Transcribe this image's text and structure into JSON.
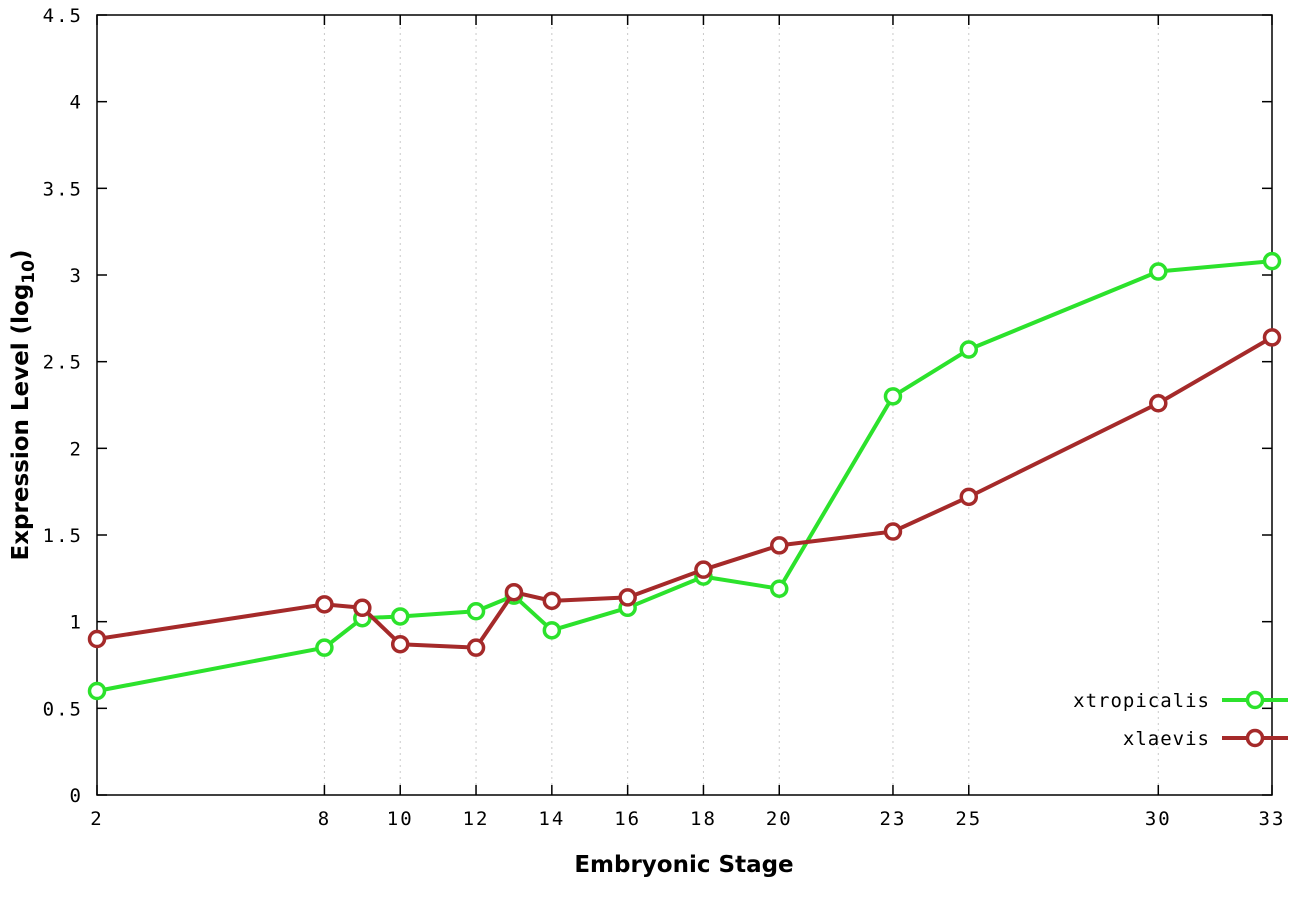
{
  "chart_data": {
    "type": "line",
    "title": "",
    "xlabel": "Embryonic Stage",
    "ylabel": "Expression Level (log10)",
    "ylabel_parts": {
      "prefix": "Expression Level (log",
      "sub": "10",
      "suffix": ")"
    },
    "xlim": [
      2,
      33
    ],
    "ylim": [
      0,
      4.5
    ],
    "xticks": [
      2,
      8,
      10,
      12,
      14,
      16,
      18,
      20,
      23,
      25,
      30,
      33
    ],
    "yticks": [
      0,
      0.5,
      1,
      1.5,
      2,
      2.5,
      3,
      3.5,
      4,
      4.5
    ],
    "grid": "vertical-dotted",
    "grid_color": "#c9c9c9",
    "background_color": "#ffffff",
    "border_color": "#000000",
    "legend_position": "bottom-right-inside",
    "x": [
      2,
      8,
      9,
      10,
      12,
      13,
      14,
      16,
      18,
      20,
      23,
      25,
      30,
      33
    ],
    "series": [
      {
        "name": "xtropicalis",
        "color": "#2ce22c",
        "values": [
          0.6,
          0.85,
          1.02,
          1.03,
          1.06,
          1.15,
          0.95,
          1.08,
          1.26,
          1.19,
          2.3,
          2.57,
          3.02,
          3.08
        ]
      },
      {
        "name": "xlaevis",
        "color": "#a52a2a",
        "values": [
          0.9,
          1.1,
          1.08,
          0.87,
          0.85,
          1.17,
          1.12,
          1.14,
          1.3,
          1.44,
          1.52,
          1.72,
          2.26,
          2.64
        ]
      }
    ]
  }
}
